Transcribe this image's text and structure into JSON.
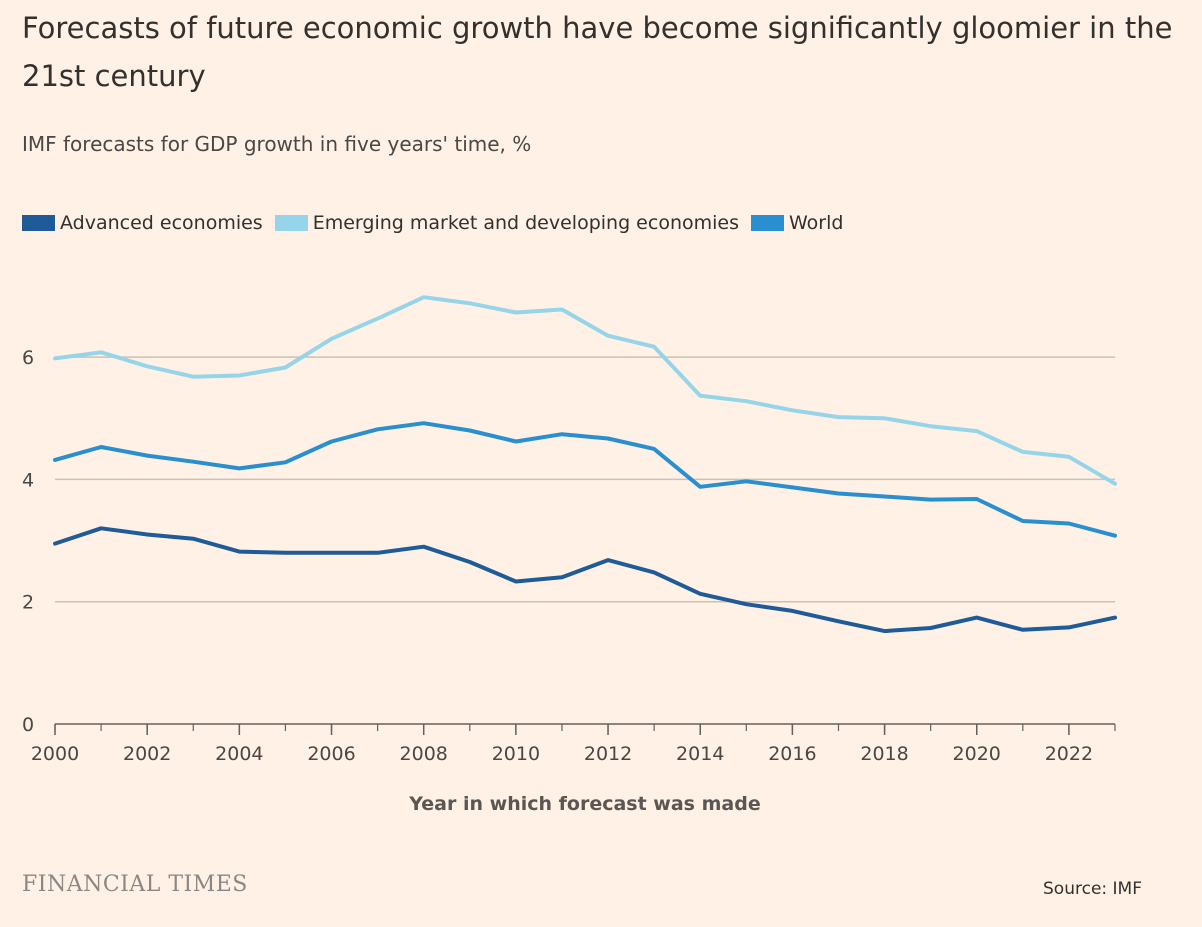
{
  "header": {
    "title": "Forecasts of future economic growth have become significantly gloomier in the 21st century",
    "subtitle": "IMF forecasts for GDP growth in five years' time, %"
  },
  "footer": {
    "brand": "FINANCIAL TIMES",
    "source": "Source: IMF"
  },
  "chart_data": {
    "type": "line",
    "title": "Forecasts of future economic growth have become significantly gloomier in the 21st century",
    "subtitle": "IMF forecasts for GDP growth in five years' time, %",
    "xlabel": "Year in which forecast was made",
    "ylabel": "",
    "xlim": [
      2000,
      2023
    ],
    "ylim": [
      0,
      7
    ],
    "yticks": [
      0,
      2,
      4,
      6
    ],
    "xticks": [
      2000,
      2002,
      2004,
      2006,
      2008,
      2010,
      2012,
      2014,
      2016,
      2018,
      2020,
      2022
    ],
    "grid": true,
    "legend_position": "top-left",
    "x": [
      2000,
      2001,
      2002,
      2003,
      2004,
      2005,
      2006,
      2007,
      2008,
      2009,
      2010,
      2011,
      2012,
      2013,
      2014,
      2015,
      2016,
      2017,
      2018,
      2019,
      2020,
      2021,
      2022,
      2023
    ],
    "series": [
      {
        "name": "Advanced economies",
        "color": "#1f5a99",
        "values": [
          2.95,
          3.2,
          3.1,
          3.03,
          2.82,
          2.8,
          2.8,
          2.8,
          2.9,
          2.65,
          2.33,
          2.4,
          2.68,
          2.48,
          2.13,
          1.96,
          1.85,
          1.68,
          1.52,
          1.57,
          1.74,
          1.54,
          1.58,
          1.74
        ]
      },
      {
        "name": "Emerging market and developing economies",
        "color": "#96d4ea",
        "values": [
          5.98,
          6.08,
          5.85,
          5.68,
          5.7,
          5.83,
          6.3,
          6.63,
          6.98,
          6.88,
          6.73,
          6.78,
          6.35,
          6.17,
          5.37,
          5.28,
          5.13,
          5.02,
          5.0,
          4.87,
          4.79,
          4.45,
          4.37,
          3.93
        ]
      },
      {
        "name": "World",
        "color": "#2a8fd0",
        "values": [
          4.32,
          4.53,
          4.39,
          4.29,
          4.18,
          4.28,
          4.62,
          4.82,
          4.92,
          4.8,
          4.62,
          4.74,
          4.67,
          4.5,
          3.88,
          3.97,
          3.87,
          3.77,
          3.72,
          3.67,
          3.68,
          3.32,
          3.28,
          3.08
        ]
      }
    ]
  }
}
